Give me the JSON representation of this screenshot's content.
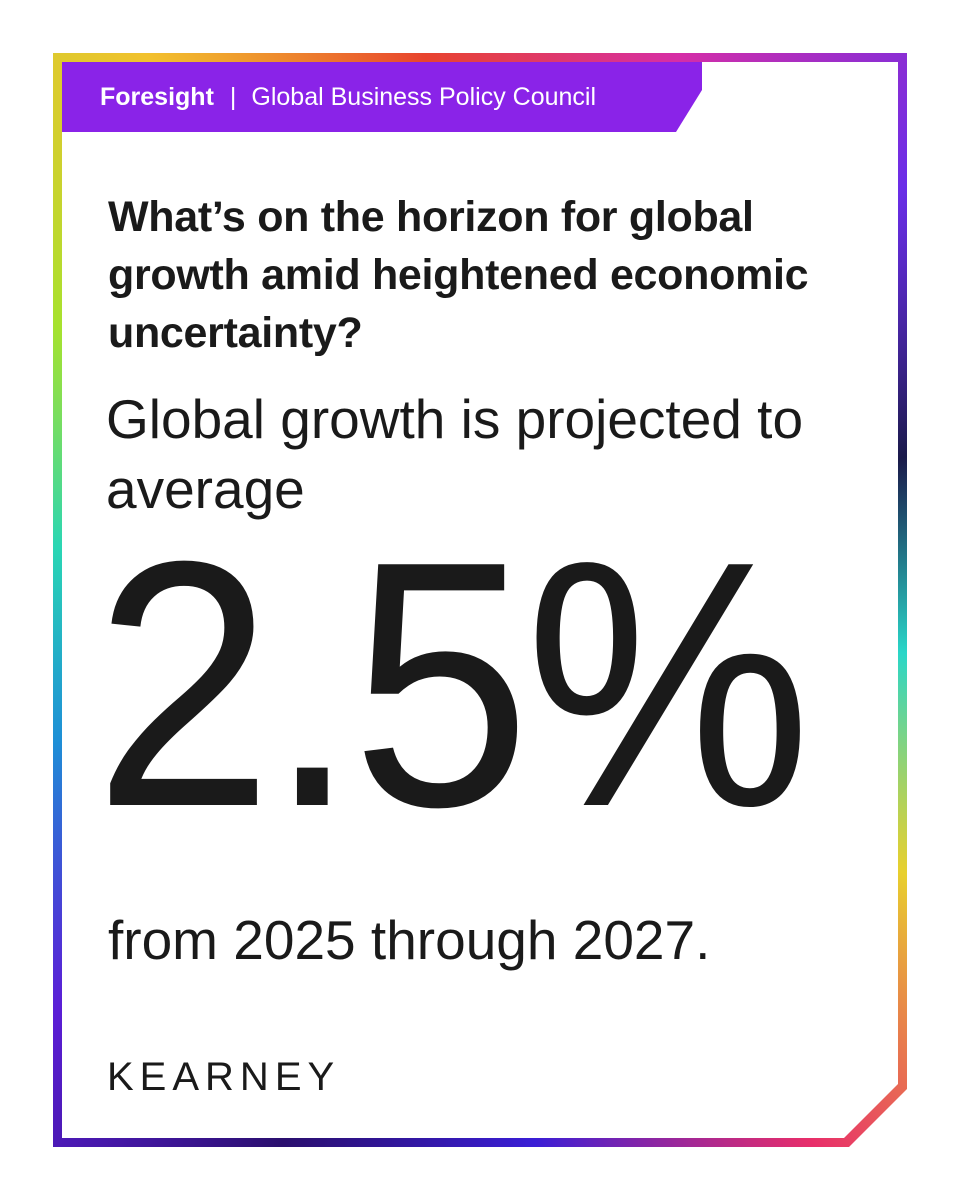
{
  "header": {
    "brand": "Foresight",
    "separator": "|",
    "council": "Global Business Policy Council"
  },
  "question": "What’s on the horizon for global growth amid heightened economic uncertainty?",
  "lead": "Global growth is projected to average",
  "highlight_value": "2.5%",
  "tail": "from 2025 through 2027.",
  "logo": "KEARNEY",
  "colors": {
    "header_bg": "#8a23e8",
    "text": "#1a1a1a",
    "background": "#ffffff"
  }
}
